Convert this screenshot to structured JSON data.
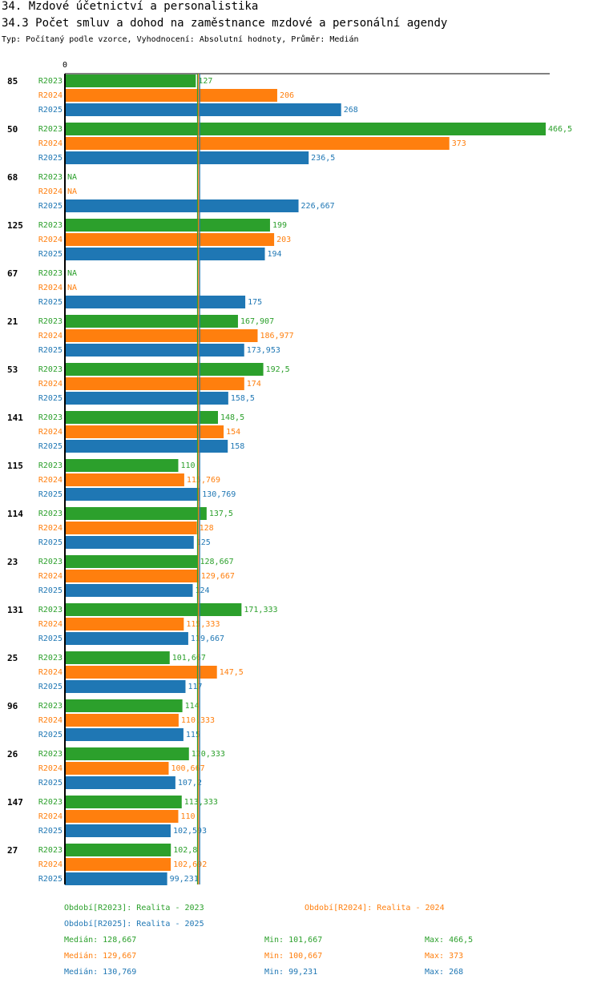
{
  "header": {
    "title": "34. Mzdové účetnictví a personalistika",
    "subtitle": "34.3 Počet smluv a dohod na zaměstnance mzdové a personální agendy",
    "meta": "Typ: Počítaný podle vzorce, Vyhodnocení: Absolutní hodnoty, Průměr: Medián"
  },
  "colors": {
    "R2023": "#2ca02c",
    "R2024": "#ff7f0e",
    "R2025": "#1f77b4"
  },
  "chart_data": {
    "type": "bar",
    "orientation": "horizontal",
    "axis_zero_label": "0",
    "xlim": [
      0,
      466.5
    ],
    "series_names": [
      "R2023",
      "R2024",
      "R2025"
    ],
    "categories": [
      "85",
      "50",
      "68",
      "125",
      "67",
      "21",
      "53",
      "141",
      "115",
      "114",
      "23",
      "131",
      "25",
      "96",
      "26",
      "147",
      "27"
    ],
    "series": [
      {
        "name": "R2023",
        "values": [
          127,
          466.5,
          null,
          199,
          null,
          167.907,
          192.5,
          148.5,
          110,
          137.5,
          128.667,
          171.333,
          101.667,
          114,
          120.333,
          113.333,
          102.8
        ],
        "labels": [
          "127",
          "466,5",
          "NA",
          "199",
          "NA",
          "167,907",
          "192,5",
          "148,5",
          "110",
          "137,5",
          "128,667",
          "171,333",
          "101,667",
          "114",
          "120,333",
          "113,333",
          "102,8"
        ]
      },
      {
        "name": "R2024",
        "values": [
          206,
          373,
          null,
          203,
          null,
          186.977,
          174,
          154,
          115.769,
          128,
          129.667,
          115.333,
          147.5,
          110.333,
          100.667,
          110,
          102.692
        ],
        "labels": [
          "206",
          "373",
          "NA",
          "203",
          "NA",
          "186,977",
          "174",
          "154",
          "115,769",
          "128",
          "129,667",
          "115,333",
          "147,5",
          "110,333",
          "100,667",
          "110",
          "102,692"
        ]
      },
      {
        "name": "R2025",
        "values": [
          268,
          236.5,
          226.667,
          194,
          175,
          173.953,
          158.5,
          158,
          130.769,
          125,
          124,
          119.667,
          117,
          115,
          107.2,
          102.593,
          99.231
        ],
        "labels": [
          "268",
          "236,5",
          "226,667",
          "194",
          "175",
          "173,953",
          "158,5",
          "158",
          "130,769",
          "125",
          "124",
          "119,667",
          "117",
          "115",
          "107,2",
          "102,593",
          "99,231"
        ]
      }
    ],
    "median_lines": [
      128.667,
      129.667,
      130.769
    ]
  },
  "legend": {
    "r2023": "Období[R2023]: Realita - 2023",
    "r2024": "Období[R2024]: Realita - 2024",
    "r2025": "Období[R2025]: Realita - 2025"
  },
  "stats": [
    {
      "median": "Medián: 128,667",
      "min": "Min: 101,667",
      "max": "Max: 466,5"
    },
    {
      "median": "Medián: 129,667",
      "min": "Min: 100,667",
      "max": "Max: 373"
    },
    {
      "median": "Medián: 130,769",
      "min": "Min: 99,231",
      "max": "Max: 268"
    }
  ]
}
